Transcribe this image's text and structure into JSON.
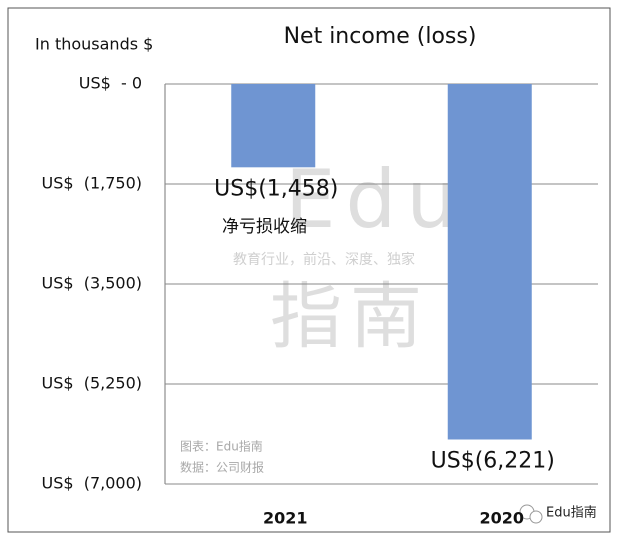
{
  "chart_data": {
    "type": "bar",
    "title": "Net income (loss)",
    "y_axis_label": "In thousands $",
    "categories": [
      "2021",
      "2020"
    ],
    "values": [
      -1458,
      -6221
    ],
    "value_labels": [
      "US$(1,458)",
      "US$(6,221)"
    ],
    "color": "#6f95d2",
    "ylim": [
      -7000,
      0
    ],
    "yticks": [
      {
        "value": 0,
        "label": "US$  - 0"
      },
      {
        "value": -1750,
        "label": "US$  (1,750)"
      },
      {
        "value": -3500,
        "label": "US$  (3,500)"
      },
      {
        "value": -5250,
        "label": "US$  (5,250)"
      },
      {
        "value": -7000,
        "label": "US$  (7,000)"
      }
    ],
    "grid": true,
    "annotation": "净亏损收缩"
  },
  "watermark": {
    "big_top": "Edu",
    "tagline": "教育行业，前沿、深度、独家",
    "big_bottom": "指南",
    "chart_credit": "图表：Edu指南",
    "data_source": "数据：公司财报",
    "account": "Edu指南"
  }
}
